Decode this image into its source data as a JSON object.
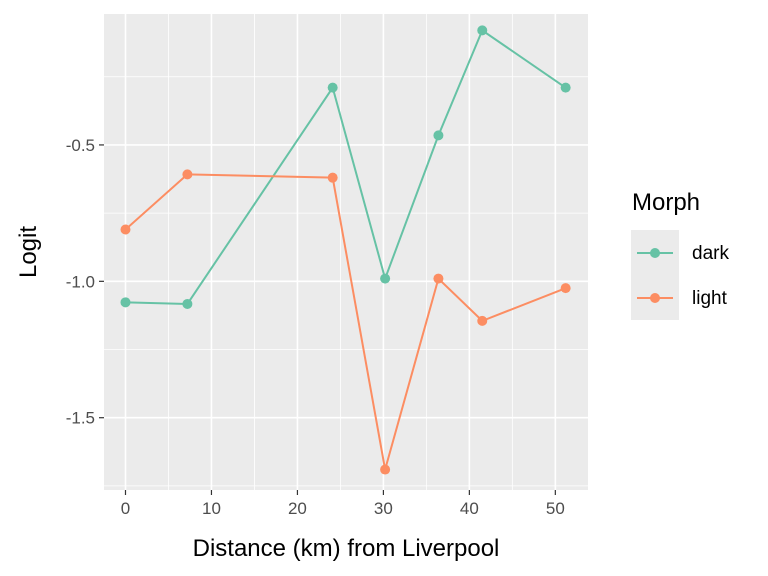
{
  "chart_data": {
    "type": "line",
    "xlabel": "Distance (km) from Liverpool",
    "ylabel": "Logit",
    "xlim": [
      -2.5,
      53.8
    ],
    "ylim": [
      -1.765,
      -0.02
    ],
    "xticks": [
      0,
      10,
      20,
      30,
      40,
      50
    ],
    "xtick_labels": [
      "0",
      "10",
      "20",
      "30",
      "40",
      "50"
    ],
    "yticks": [
      -1.5,
      -1.0,
      -0.5
    ],
    "ytick_labels": [
      "-1.5",
      "-1.0",
      "-0.5"
    ],
    "grid": true,
    "legend": {
      "title": "Morph",
      "placement": "right"
    },
    "series": [
      {
        "name": "dark",
        "color": "#66c2a5",
        "x": [
          0.0,
          7.2,
          24.1,
          30.2,
          36.4,
          41.5,
          51.2
        ],
        "y": [
          -1.077,
          -1.083,
          -0.29,
          -0.99,
          -0.465,
          -0.08,
          -0.29
        ]
      },
      {
        "name": "light",
        "color": "#fc8d62",
        "x": [
          0.0,
          7.2,
          24.1,
          30.2,
          36.4,
          41.5,
          51.2
        ],
        "y": [
          -0.81,
          -0.608,
          -0.62,
          -1.69,
          -0.99,
          -1.145,
          -1.025
        ]
      }
    ]
  }
}
